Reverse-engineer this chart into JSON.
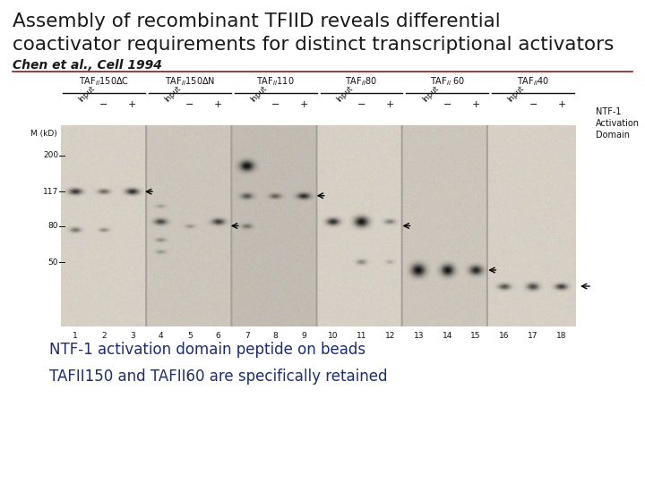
{
  "title_line1": "Assembly of recombinant TFIID reveals differential",
  "title_line2": "coactivator requirements for distinct transcriptional activators",
  "citation": "Chen et al., Cell 1994",
  "title_color": "#1a1a1a",
  "citation_color": "#1a1a1a",
  "divider_color": "#8b1a1a",
  "bullet1": "NTF-1 activation domain peptide on beads",
  "bullet2": "TAFII150 and TAFII60 are specifically retained",
  "bullet_color": "#1e2d6b",
  "title_fontsize": 15.5,
  "citation_fontsize": 10,
  "bullet_fontsize": 12,
  "bg_color": "#ffffff"
}
